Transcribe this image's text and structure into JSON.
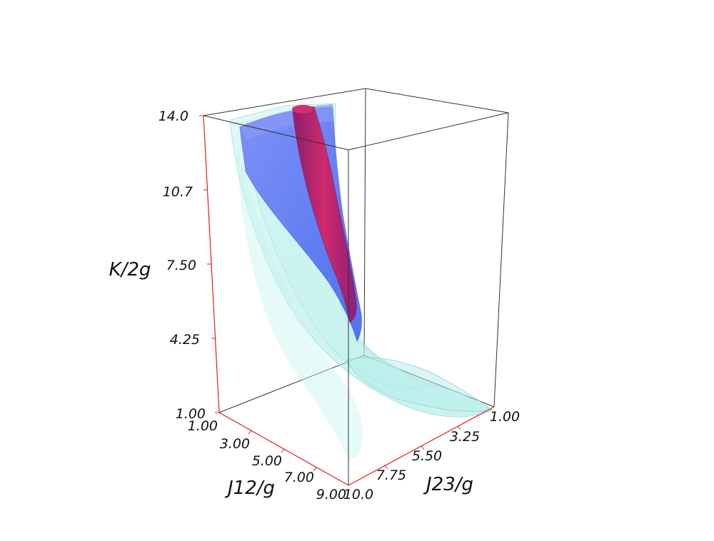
{
  "chart_data": {
    "type": "3d-isosurface",
    "axes": {
      "x": {
        "label": "J12/g",
        "range": [
          1.0,
          9.0
        ],
        "ticks": [
          "1.00",
          "3.00",
          "5.00",
          "7.00",
          "9.00"
        ]
      },
      "y": {
        "label": "J23/g",
        "range": [
          1.0,
          10.0
        ],
        "ticks": [
          "1.00",
          "3.25",
          "5.50",
          "7.75",
          "10.0"
        ]
      },
      "z": {
        "label": "K/2g",
        "range": [
          1.0,
          14.0
        ],
        "ticks": [
          "1.00",
          "4.25",
          "7.50",
          "10.7",
          "14.0"
        ]
      }
    },
    "surfaces": [
      {
        "color": "#9fe8e4",
        "opacity": 0.4
      },
      {
        "color": "#4a6cf0",
        "opacity": 0.85
      },
      {
        "color": "#c0246a",
        "opacity": 0.85
      }
    ],
    "colors": {
      "bounding_box": "#333333",
      "axis_line": "#e31b1b"
    },
    "grid": false
  }
}
